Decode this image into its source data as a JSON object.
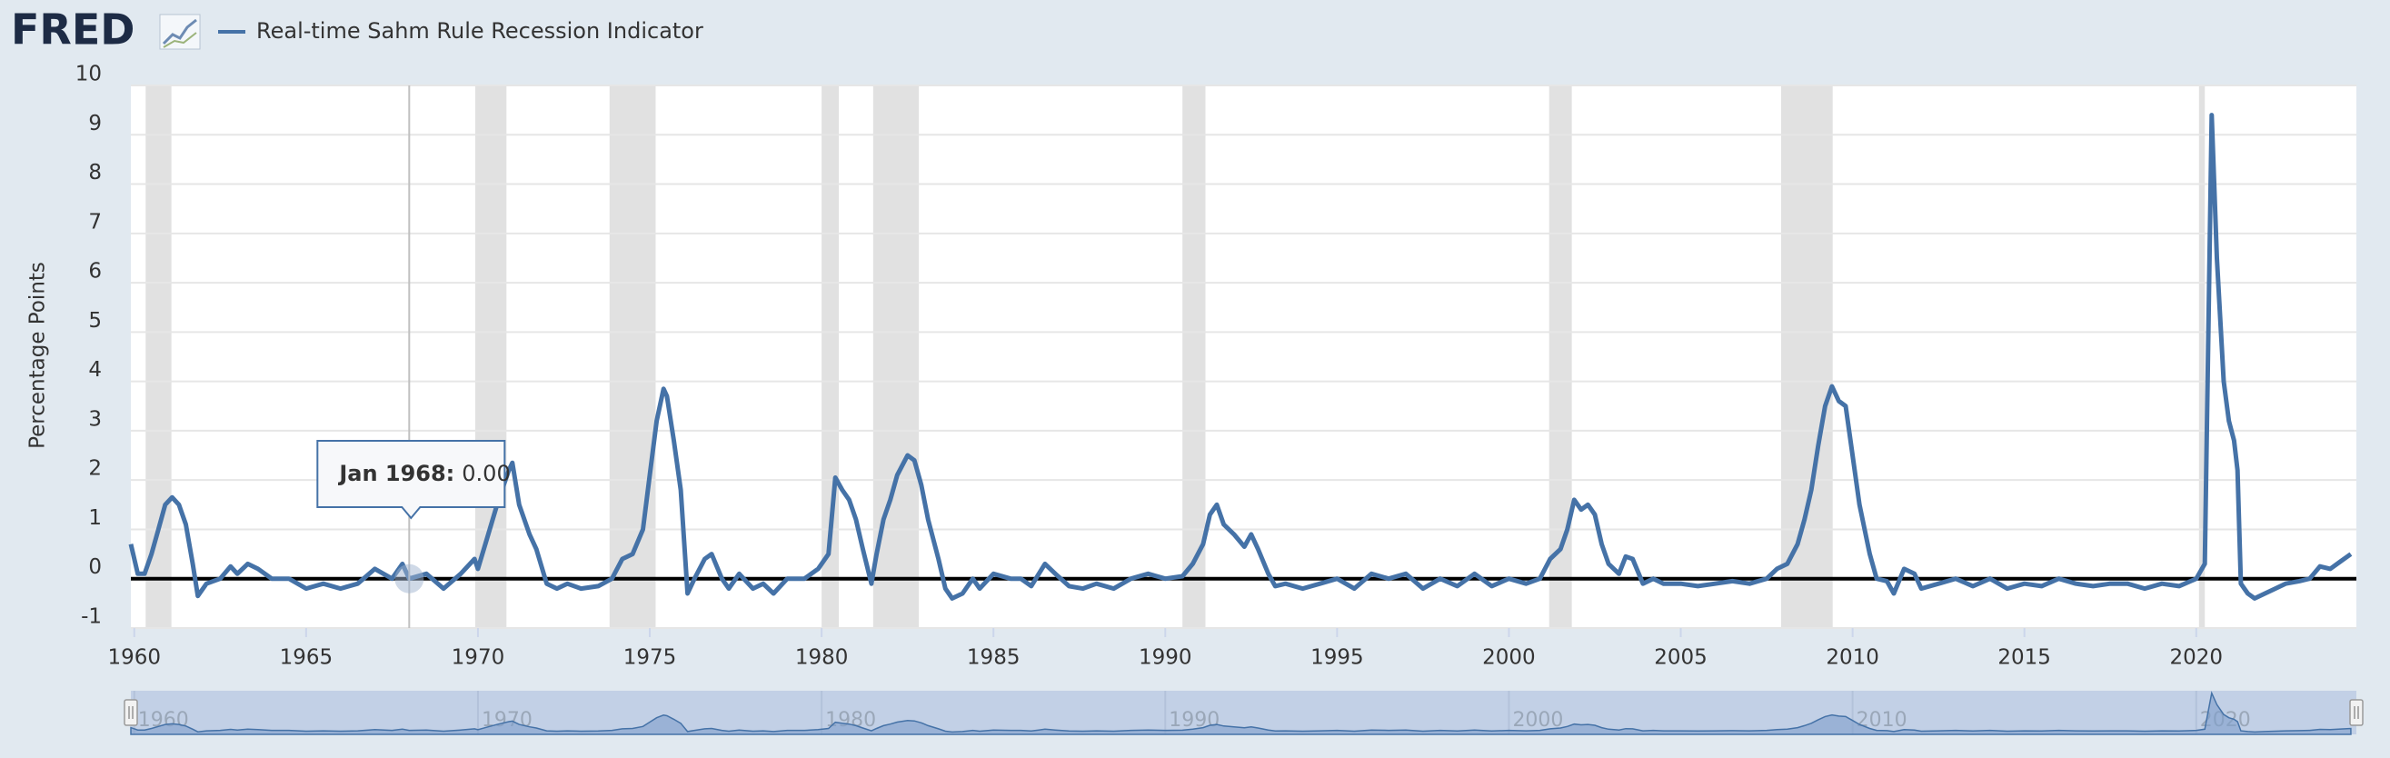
{
  "logo": "FRED",
  "chart_data": {
    "type": "line",
    "y_axis_label": "Percentage Points",
    "x": [
      1959.9,
      1960.1,
      1960.3,
      1960.5,
      1960.7,
      1960.9,
      1961.1,
      1961.3,
      1961.5,
      1961.7,
      1961.85,
      1962.1,
      1962.5,
      1962.8,
      1963.0,
      1963.3,
      1963.6,
      1964.0,
      1964.5,
      1965.0,
      1965.5,
      1966.0,
      1966.5,
      1967.0,
      1967.5,
      1967.8,
      1968.0,
      1968.5,
      1969.0,
      1969.5,
      1969.9,
      1970.0,
      1970.3,
      1970.6,
      1970.9,
      1971.0,
      1971.2,
      1971.5,
      1971.7,
      1972.0,
      1972.3,
      1972.6,
      1973.0,
      1973.5,
      1973.9,
      1974.2,
      1974.5,
      1974.8,
      1975.0,
      1975.2,
      1975.4,
      1975.5,
      1975.7,
      1975.9,
      1976.1,
      1976.3,
      1976.6,
      1976.8,
      1977.1,
      1977.3,
      1977.6,
      1978.0,
      1978.3,
      1978.6,
      1979.0,
      1979.5,
      1979.9,
      1980.2,
      1980.4,
      1980.6,
      1980.8,
      1981.0,
      1981.2,
      1981.45,
      1981.6,
      1981.8,
      1982.0,
      1982.2,
      1982.5,
      1982.7,
      1982.9,
      1983.1,
      1983.4,
      1983.6,
      1983.8,
      1984.1,
      1984.4,
      1984.6,
      1985.0,
      1985.5,
      1985.8,
      1986.1,
      1986.5,
      1986.8,
      1987.2,
      1987.6,
      1988.0,
      1988.5,
      1989.0,
      1989.5,
      1990.0,
      1990.5,
      1990.8,
      1991.1,
      1991.3,
      1991.5,
      1991.7,
      1992.0,
      1992.3,
      1992.5,
      1992.7,
      1993.0,
      1993.2,
      1993.5,
      1994.0,
      1994.5,
      1995.0,
      1995.5,
      1996.0,
      1996.5,
      1997.0,
      1997.5,
      1998.0,
      1998.5,
      1999.0,
      1999.5,
      2000.0,
      2000.5,
      2000.9,
      2001.2,
      2001.5,
      2001.7,
      2001.9,
      2002.1,
      2002.3,
      2002.5,
      2002.7,
      2002.9,
      2003.2,
      2003.4,
      2003.6,
      2003.9,
      2004.2,
      2004.5,
      2005.0,
      2005.5,
      2006.0,
      2006.5,
      2007.0,
      2007.5,
      2007.8,
      2008.1,
      2008.4,
      2008.6,
      2008.8,
      2009.0,
      2009.2,
      2009.4,
      2009.6,
      2009.8,
      2010.0,
      2010.2,
      2010.5,
      2010.7,
      2011.0,
      2011.2,
      2011.5,
      2011.8,
      2012.0,
      2012.5,
      2013.0,
      2013.5,
      2014.0,
      2014.5,
      2015.0,
      2015.5,
      2016.0,
      2016.5,
      2017.0,
      2017.5,
      2018.0,
      2018.5,
      2019.0,
      2019.5,
      2020.0,
      2020.25,
      2020.45,
      2020.6,
      2020.8,
      2020.95,
      2021.1,
      2021.2,
      2021.3,
      2021.5,
      2021.7,
      2022.0,
      2022.3,
      2022.6,
      2023.0,
      2023.3,
      2023.6,
      2023.9,
      2024.2,
      2024.5
    ],
    "series": [
      {
        "name": "Real-time Sahm Rule Recession Indicator",
        "color": "#4572a7",
        "values": [
          0.7,
          0.1,
          0.1,
          0.5,
          1.0,
          1.5,
          1.65,
          1.5,
          1.1,
          0.3,
          -0.35,
          -0.1,
          0.0,
          0.25,
          0.1,
          0.3,
          0.2,
          0.0,
          0.0,
          -0.2,
          -0.1,
          -0.2,
          -0.1,
          0.2,
          0.0,
          0.3,
          0.0,
          0.1,
          -0.2,
          0.1,
          0.4,
          0.2,
          0.9,
          1.6,
          2.2,
          2.35,
          1.5,
          0.9,
          0.6,
          -0.1,
          -0.2,
          -0.1,
          -0.2,
          -0.15,
          0.0,
          0.4,
          0.5,
          1.0,
          2.1,
          3.2,
          3.85,
          3.7,
          2.8,
          1.8,
          -0.3,
          0.0,
          0.4,
          0.5,
          0.0,
          -0.2,
          0.1,
          -0.2,
          -0.1,
          -0.3,
          0.0,
          0.0,
          0.2,
          0.5,
          2.05,
          1.8,
          1.6,
          1.2,
          0.6,
          -0.1,
          0.5,
          1.2,
          1.6,
          2.1,
          2.5,
          2.4,
          1.9,
          1.2,
          0.4,
          -0.2,
          -0.4,
          -0.3,
          0.0,
          -0.2,
          0.1,
          0.0,
          0.0,
          -0.15,
          0.3,
          0.1,
          -0.15,
          -0.2,
          -0.1,
          -0.2,
          0.0,
          0.1,
          0.0,
          0.05,
          0.3,
          0.7,
          1.3,
          1.5,
          1.1,
          0.9,
          0.65,
          0.9,
          0.6,
          0.1,
          -0.15,
          -0.1,
          -0.2,
          -0.1,
          0.0,
          -0.2,
          0.1,
          0.0,
          0.1,
          -0.2,
          0.0,
          -0.15,
          0.1,
          -0.15,
          0.0,
          -0.1,
          0.0,
          0.4,
          0.6,
          1.0,
          1.6,
          1.4,
          1.5,
          1.3,
          0.7,
          0.3,
          0.1,
          0.45,
          0.4,
          -0.1,
          0.0,
          -0.1,
          -0.1,
          -0.15,
          -0.1,
          -0.05,
          -0.1,
          0.0,
          0.2,
          0.3,
          0.7,
          1.2,
          1.8,
          2.7,
          3.5,
          3.9,
          3.6,
          3.5,
          2.5,
          1.5,
          0.5,
          0.0,
          -0.05,
          -0.3,
          0.2,
          0.1,
          -0.2,
          -0.1,
          0.0,
          -0.15,
          0.0,
          -0.2,
          -0.1,
          -0.15,
          0.0,
          -0.1,
          -0.15,
          -0.1,
          -0.1,
          -0.2,
          -0.1,
          -0.15,
          0.0,
          0.3,
          9.4,
          6.5,
          4.0,
          3.2,
          2.8,
          2.2,
          -0.1,
          -0.3,
          -0.4,
          -0.3,
          -0.2,
          -0.1,
          -0.05,
          0.0,
          0.25,
          0.2,
          0.35,
          0.5
        ]
      }
    ],
    "recessions": [
      [
        1960.33,
        1961.08
      ],
      [
        1969.92,
        1970.83
      ],
      [
        1973.83,
        1975.17
      ],
      [
        1980.0,
        1980.5
      ],
      [
        1981.5,
        1982.83
      ],
      [
        1990.5,
        1991.17
      ],
      [
        2001.17,
        2001.83
      ],
      [
        2007.92,
        2009.42
      ],
      [
        2020.08,
        2020.25
      ]
    ],
    "xlim": [
      1959.9,
      2024.66
    ],
    "xticks": [
      1960,
      1965,
      1970,
      1975,
      1980,
      1985,
      1990,
      1995,
      2000,
      2005,
      2010,
      2015,
      2020
    ],
    "ylim": [
      -1,
      10
    ],
    "yticks": [
      -1,
      0,
      1,
      2,
      3,
      4,
      5,
      6,
      7,
      8,
      9,
      10
    ],
    "grid": true,
    "navigator_ticks": [
      1960,
      1970,
      1980,
      1990,
      2000,
      2010,
      2020
    ],
    "tooltip": {
      "x": 1968,
      "value": 0,
      "label": "Jan 1968:",
      "value_label": "0.00"
    }
  }
}
